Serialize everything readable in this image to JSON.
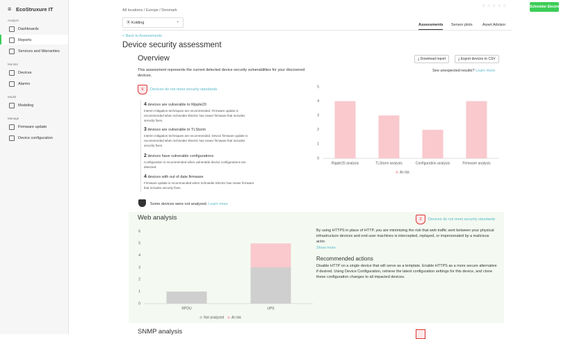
{
  "sidebar": {
    "logo": "EcoStruxure IT",
    "sections": [
      {
        "title": "Analyze",
        "items": [
          "Dashboards",
          "Reports",
          "Services and Warranties"
        ]
      },
      {
        "title": "Monitor",
        "items": [
          "Devices",
          "Alarms"
        ]
      },
      {
        "title": "Model",
        "items": [
          "Modeling"
        ]
      },
      {
        "title": "Manage",
        "items": [
          "Firmware update",
          "Device configuration"
        ]
      }
    ]
  },
  "header": {
    "breadcrumb": [
      "All locations",
      "Europe",
      "Denmark"
    ],
    "location": "Kolding",
    "tabs": [
      "Assessments",
      "Sensor plots",
      "Asset Advisor"
    ],
    "brand": "Schneider Electric"
  },
  "page": {
    "back_link": "< Back to Assessments",
    "title": "Device security assessment"
  },
  "overview": {
    "title": "Overview",
    "buttons": [
      "Download report",
      "Export devices to CSV"
    ],
    "description": "This assessment represents the current detected device security vulnerabilities for your discovered devices.",
    "unexpected": "See unexpected results?",
    "learn_more": "Learn more",
    "badge_count": 6,
    "badge_text": "Devices do not meet security standards",
    "items": [
      {
        "count": 4,
        "text": "devices are vulnerable to Ripple20",
        "detail": "Interim mitigation techniques are recommended. Firmware update is recommended when Schneider Electric has newer firmware that includes security fixes."
      },
      {
        "count": 3,
        "text": "devices are vulnerable to TLStorm",
        "detail": "Interim mitigation techniques are recommended. Device firmware update is recommended when Schneider Electric has newer firmware that includes security fixes."
      },
      {
        "count": 2,
        "text": "devices have vulnerable configurations",
        "detail": "Configuration is recommended when vulnerable device configurations are detected."
      },
      {
        "count": 4,
        "text": "devices with out of date firmware",
        "detail": "Firmware update is recommended when Schneider Electric has newer firmware that includes security fixes."
      }
    ],
    "not_analyzed": "Some devices were not analyzed.",
    "not_analyzed_link": "Learn more"
  },
  "web_analysis": {
    "title": "Web analysis",
    "badge_count": 2,
    "badge_text": "Devices do not meet security standards",
    "description": "By using HTTPS in place of HTTP, you are minimizing the risk that web traffic sent between your physical infrastructure devices and end user machines is intercepted, replayed, or impersonated by a malicious actor.",
    "show_more": "Show more",
    "actions_title": "Recommended actions",
    "actions": "Disable HTTP on a single device that will serve as a template. Enable HTTPS as a more secure alternative if desired. Using Device Configuration, retrieve the latest configuration settings for this device, and clone these configuration changes to all impacted devices."
  },
  "snmp": {
    "title": "SNMP analysis"
  },
  "chart_data": [
    {
      "type": "bar",
      "categories": [
        "Ripple20 analysis",
        "TLStorm analysis",
        "Configuration analysis",
        "Firmware analysis"
      ],
      "series": [
        {
          "name": "At risk",
          "color": "#f9c9cd",
          "values": [
            4,
            3,
            2,
            4
          ]
        }
      ],
      "ylim": [
        0,
        5
      ],
      "yticks": [
        0,
        1,
        2,
        3,
        4,
        5
      ]
    },
    {
      "type": "stacked_bar",
      "categories": [
        "RPDU",
        "UPS"
      ],
      "series": [
        {
          "name": "Not analyzed",
          "color": "#cfcfcf",
          "values": [
            1,
            3
          ]
        },
        {
          "name": "At risk",
          "color": "#f9c9cd",
          "values": [
            0,
            2
          ]
        }
      ],
      "ylim": [
        0,
        6
      ],
      "yticks": [
        0,
        1,
        2,
        3,
        4,
        5,
        6
      ]
    }
  ]
}
